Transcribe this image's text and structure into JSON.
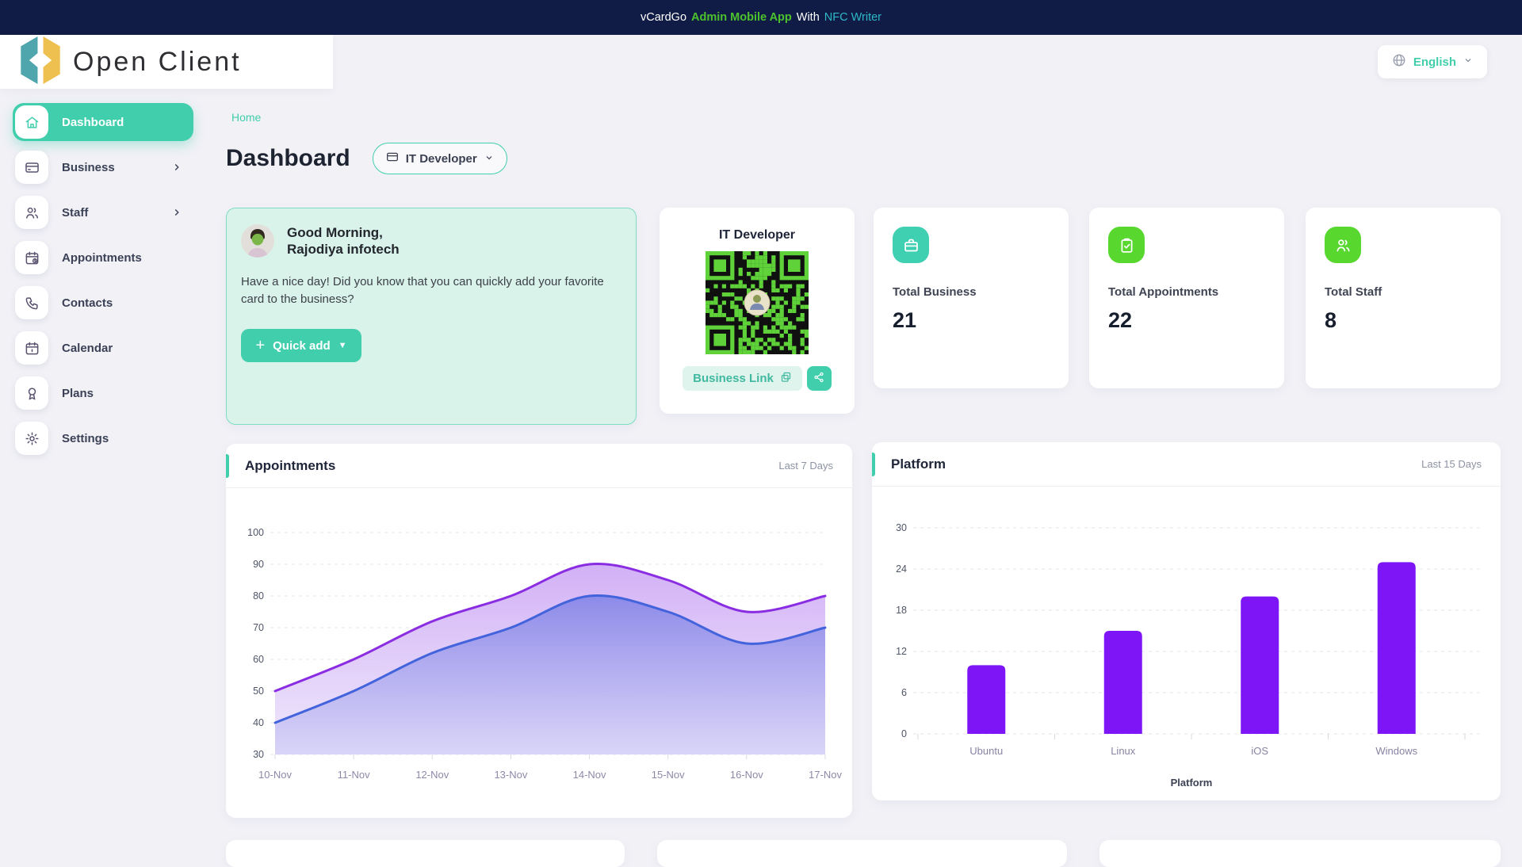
{
  "topbar": {
    "brand": "vCardGo",
    "highlight": "Admin Mobile App",
    "middle": "With",
    "link": "NFC Writer"
  },
  "header": {
    "logo_text": "Open Client",
    "language": {
      "label": "English"
    }
  },
  "sidebar": {
    "items": [
      {
        "label": "Dashboard",
        "icon": "home-icon",
        "active": true,
        "has_children": false
      },
      {
        "label": "Business",
        "icon": "credit-card-icon",
        "active": false,
        "has_children": true
      },
      {
        "label": "Staff",
        "icon": "users-icon",
        "active": false,
        "has_children": true
      },
      {
        "label": "Appointments",
        "icon": "calendar-clock-icon",
        "active": false,
        "has_children": false
      },
      {
        "label": "Contacts",
        "icon": "phone-icon",
        "active": false,
        "has_children": false
      },
      {
        "label": "Calendar",
        "icon": "calendar-icon",
        "active": false,
        "has_children": false
      },
      {
        "label": "Plans",
        "icon": "award-icon",
        "active": false,
        "has_children": false
      },
      {
        "label": "Settings",
        "icon": "gear-icon",
        "active": false,
        "has_children": false
      }
    ]
  },
  "breadcrumb": {
    "home": "Home"
  },
  "page": {
    "title": "Dashboard",
    "business_selector": "IT Developer"
  },
  "greeting": {
    "line1": "Good Morning,",
    "line2": "Rajodiya infotech",
    "message": "Have a nice day! Did you know that you can quickly add your favorite card to the business?",
    "quick_add_label": "Quick add"
  },
  "qr_card": {
    "title": "IT Developer",
    "business_link_label": "Business Link",
    "qr_module_color": "#5fd23a",
    "qr_bg_color": "#101010"
  },
  "stats": [
    {
      "label": "Total Business",
      "value": "21",
      "icon": "briefcase-icon",
      "icon_color": "#3fd0b2"
    },
    {
      "label": "Total Appointments",
      "value": "22",
      "icon": "clipboard-check-icon",
      "icon_color": "#58d72e"
    },
    {
      "label": "Total Staff",
      "value": "8",
      "icon": "users-icon",
      "icon_color": "#58d72e"
    }
  ],
  "chart_data": [
    {
      "type": "area",
      "title": "Appointments",
      "subtitle": "Last 7 Days",
      "x": [
        "10-Nov",
        "11-Nov",
        "12-Nov",
        "13-Nov",
        "14-Nov",
        "15-Nov",
        "16-Nov",
        "17-Nov"
      ],
      "series": [
        {
          "name": "upper",
          "color": "#8a2ce2",
          "values": [
            50,
            60,
            72,
            80,
            90,
            85,
            75,
            80
          ]
        },
        {
          "name": "lower",
          "color": "#4263db",
          "values": [
            40,
            50,
            62,
            70,
            80,
            75,
            65,
            70
          ]
        }
      ],
      "ylim": [
        30,
        100
      ],
      "yticks": [
        30,
        40,
        50,
        60,
        70,
        80,
        90,
        100
      ],
      "grid": true,
      "legend": "none"
    },
    {
      "type": "bar",
      "title": "Platform",
      "subtitle": "Last 15 Days",
      "categories": [
        "Ubuntu",
        "Linux",
        "iOS",
        "Windows"
      ],
      "values": [
        10,
        15,
        20,
        25
      ],
      "xlabel": "Platform",
      "ylabel": "",
      "ylim": [
        0,
        30
      ],
      "yticks": [
        0,
        6,
        12,
        18,
        24,
        30
      ],
      "bar_color": "#7d15f6",
      "grid": true,
      "legend": "none"
    }
  ],
  "colors": {
    "accent_teal": "#41ceac",
    "topbar_navy": "#101c45",
    "stat_green": "#58d72e",
    "bar_violet": "#7d15f6",
    "line_purple": "#8a2ce2",
    "line_blue": "#4263db",
    "page_bg": "#f1f1f6"
  }
}
